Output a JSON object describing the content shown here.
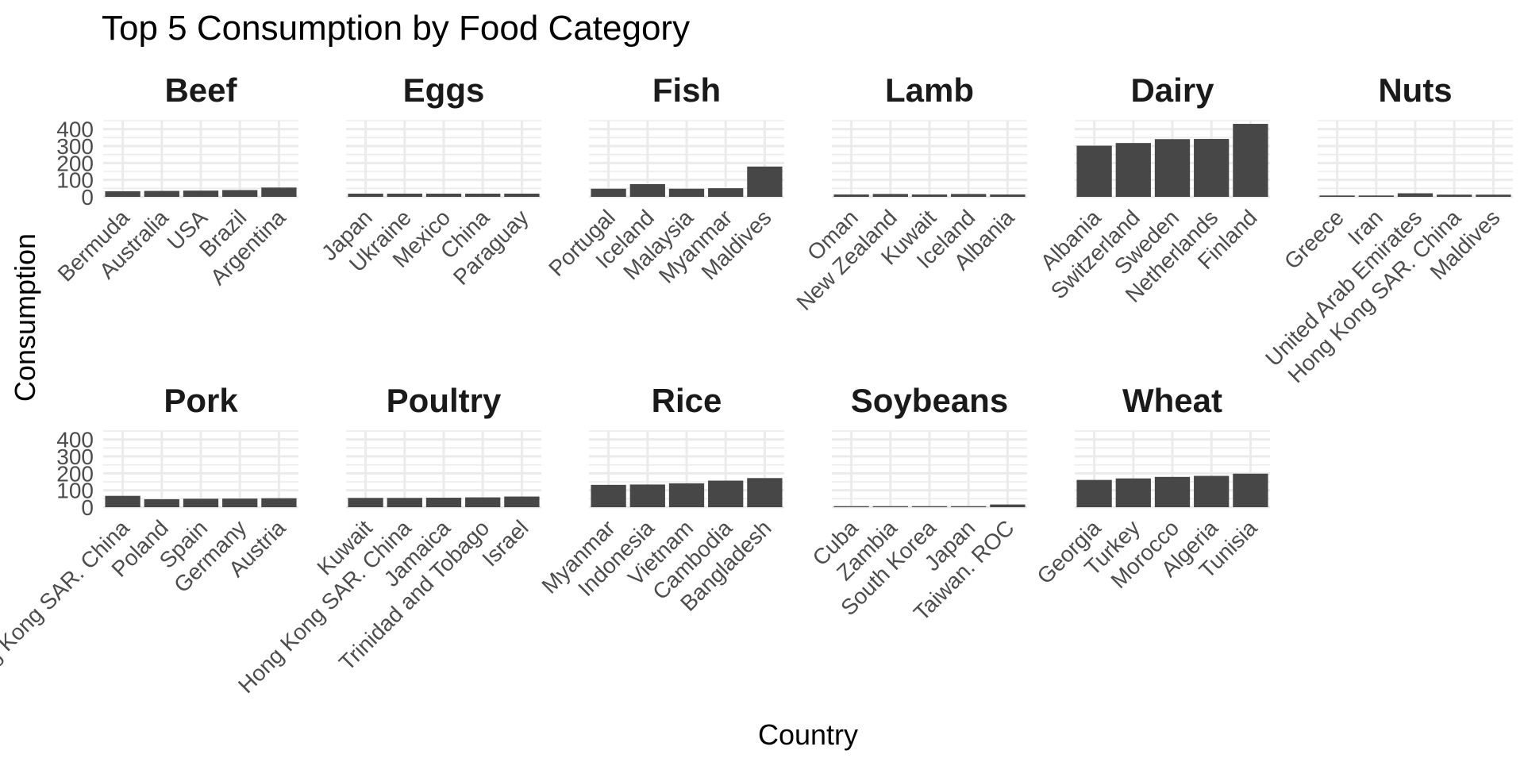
{
  "chart_data": {
    "type": "bar",
    "title": "Top 5 Consumption by Food Category",
    "xlabel": "Country",
    "ylabel": "Consumption",
    "ylim": [
      0,
      450
    ],
    "yticks": [
      0,
      100,
      200,
      300,
      400
    ],
    "grid": true,
    "bar_color": "#474747",
    "grid_color": "#ebebeb",
    "panels": [
      {
        "category": "Beef",
        "countries": [
          "Bermuda",
          "Australia",
          "USA",
          "Brazil",
          "Argentina"
        ],
        "values": [
          33,
          35,
          37,
          40,
          55
        ]
      },
      {
        "category": "Eggs",
        "countries": [
          "Japan",
          "Ukraine",
          "Mexico",
          "China",
          "Paraguay"
        ],
        "values": [
          19,
          19,
          19,
          19,
          19
        ]
      },
      {
        "category": "Fish",
        "countries": [
          "Portugal",
          "Iceland",
          "Malaysia",
          "Myanmar",
          "Maldives"
        ],
        "values": [
          48,
          75,
          48,
          51,
          179
        ]
      },
      {
        "category": "Lamb",
        "countries": [
          "Oman",
          "New Zealand",
          "Kuwait",
          "Iceland",
          "Albania"
        ],
        "values": [
          14,
          17,
          14,
          17,
          14
        ]
      },
      {
        "category": "Dairy",
        "countries": [
          "Albania",
          "Switzerland",
          "Sweden",
          "Netherlands",
          "Finland"
        ],
        "values": [
          302,
          318,
          341,
          342,
          431
        ]
      },
      {
        "category": "Nuts",
        "countries": [
          "Greece",
          "Iran",
          "United Arab Emirates",
          "Hong Kong SAR. China",
          "Maldives"
        ],
        "values": [
          8,
          8,
          21,
          13,
          13
        ]
      },
      {
        "category": "Pork",
        "countries": [
          "Hong Kong SAR. China",
          "Poland",
          "Spain",
          "Germany",
          "Austria"
        ],
        "values": [
          67,
          47,
          50,
          51,
          53
        ]
      },
      {
        "category": "Poultry",
        "countries": [
          "Kuwait",
          "Hong Kong SAR. China",
          "Jamaica",
          "Trinidad and Tobago",
          "Israel"
        ],
        "values": [
          55,
          55,
          56,
          58,
          63
        ]
      },
      {
        "category": "Rice",
        "countries": [
          "Myanmar",
          "Indonesia",
          "Vietnam",
          "Cambodia",
          "Bangladesh"
        ],
        "values": [
          132,
          134,
          141,
          157,
          172
        ]
      },
      {
        "category": "Soybeans",
        "countries": [
          "Cuba",
          "Zambia",
          "South Korea",
          "Japan",
          "Taiwan. ROC"
        ],
        "values": [
          6,
          6,
          6,
          6,
          16
        ]
      },
      {
        "category": "Wheat",
        "countries": [
          "Georgia",
          "Turkey",
          "Morocco",
          "Algeria",
          "Tunisia"
        ],
        "values": [
          161,
          170,
          179,
          185,
          198
        ]
      }
    ]
  }
}
